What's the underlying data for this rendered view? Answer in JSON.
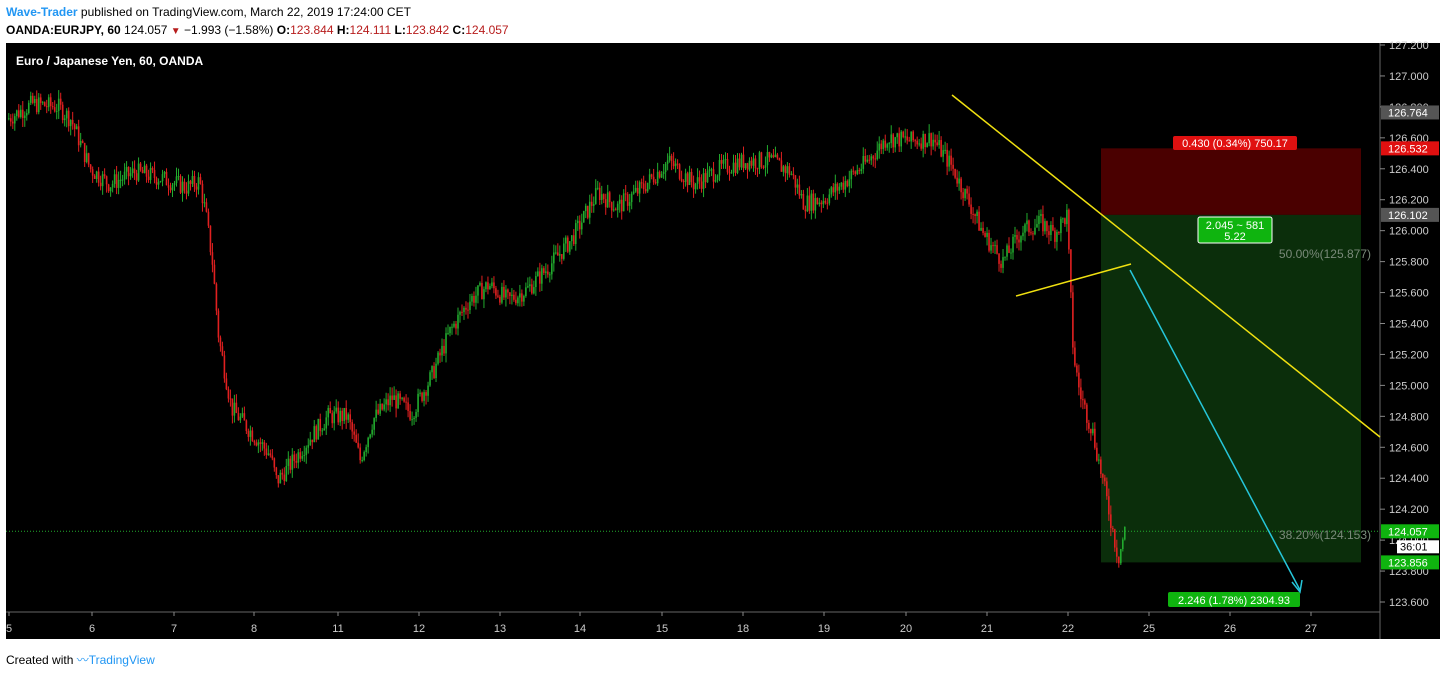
{
  "header": {
    "author": "Wave-Trader",
    "published_text": " published on TradingView.com, March 22, 2019 17:24:00 CET",
    "symbol": "OANDA:EURJPY, 60",
    "last": "124.057",
    "change": "−1.993 (−1.58%)",
    "o_label": "O:",
    "o_value": "123.844",
    "h_label": "H:",
    "h_value": "124.111",
    "l_label": "L:",
    "l_value": "123.842",
    "c_label": "C:",
    "c_value": "124.057"
  },
  "footer": {
    "created_with": "Created with",
    "brand": "TradingView"
  },
  "colors": {
    "background": "#000000",
    "up_candle": "#22ab2e",
    "down_candle": "#e02020",
    "trendline": "#f0e010",
    "arrow": "#26c6da",
    "stop_zone": "#4a0000",
    "target_zone": "#0b2e0b",
    "price_tag_green": "#0fb40f",
    "price_tag_red": "#e01010",
    "price_tag_gray": "#555555"
  },
  "chart_data": {
    "type": "candlestick",
    "title": "Euro / Japanese Yen, 60, OANDA",
    "xlabel": "",
    "ylabel": "",
    "ylim": [
      123.6,
      127.2
    ],
    "y_ticks": [
      "127.200",
      "127.000",
      "126.800",
      "126.600",
      "126.400",
      "126.200",
      "126.000",
      "125.800",
      "125.600",
      "125.400",
      "125.200",
      "125.000",
      "124.800",
      "124.600",
      "124.400",
      "124.200",
      "124.000",
      "123.800",
      "123.600"
    ],
    "x_ticks": [
      "5",
      "6",
      "7",
      "8",
      "11",
      "12",
      "13",
      "14",
      "15",
      "18",
      "19",
      "20",
      "21",
      "22",
      "25",
      "26",
      "27"
    ],
    "price_path": [
      [
        0,
        126.72
      ],
      [
        4,
        126.82
      ],
      [
        8,
        126.8
      ],
      [
        10,
        126.72
      ],
      [
        13,
        126.4
      ],
      [
        16,
        126.3
      ],
      [
        20,
        126.38
      ],
      [
        24,
        126.34
      ],
      [
        28,
        126.28
      ],
      [
        30,
        126.32
      ],
      [
        31,
        126.1
      ],
      [
        32,
        125.8
      ],
      [
        33,
        125.3
      ],
      [
        35,
        124.85
      ],
      [
        38,
        124.7
      ],
      [
        41,
        124.55
      ],
      [
        42,
        124.38
      ],
      [
        44,
        124.48
      ],
      [
        47,
        124.65
      ],
      [
        50,
        124.8
      ],
      [
        53,
        124.8
      ],
      [
        55,
        124.52
      ],
      [
        57,
        124.78
      ],
      [
        60,
        124.92
      ],
      [
        63,
        124.82
      ],
      [
        66,
        125.05
      ],
      [
        69,
        125.35
      ],
      [
        72,
        125.55
      ],
      [
        75,
        125.65
      ],
      [
        78,
        125.55
      ],
      [
        81,
        125.62
      ],
      [
        84,
        125.75
      ],
      [
        88,
        125.95
      ],
      [
        92,
        126.25
      ],
      [
        95,
        126.15
      ],
      [
        99,
        126.28
      ],
      [
        103,
        126.45
      ],
      [
        107,
        126.3
      ],
      [
        111,
        126.4
      ],
      [
        115,
        126.45
      ],
      [
        119,
        126.45
      ],
      [
        122,
        126.38
      ],
      [
        124,
        126.18
      ],
      [
        127,
        126.2
      ],
      [
        130,
        126.3
      ],
      [
        134,
        126.45
      ],
      [
        137,
        126.6
      ],
      [
        141,
        126.58
      ],
      [
        144,
        126.6
      ],
      [
        147,
        126.42
      ],
      [
        149,
        126.25
      ],
      [
        152,
        125.98
      ],
      [
        155,
        125.8
      ],
      [
        158,
        126.0
      ],
      [
        161,
        126.05
      ],
      [
        163,
        125.98
      ],
      [
        165,
        126.1
      ],
      [
        166,
        125.2
      ],
      [
        167,
        124.95
      ],
      [
        169,
        124.7
      ],
      [
        171,
        124.3
      ],
      [
        173,
        123.88
      ],
      [
        174,
        124.06
      ]
    ],
    "price_path_x_domain": [
      0,
      174
    ],
    "current_price": "124.057",
    "countdown": "36:01",
    "price_tags": [
      {
        "label": "126.764",
        "style": "gray",
        "value": 126.764
      },
      {
        "label": "126.532",
        "style": "red",
        "value": 126.532
      },
      {
        "label": "126.102",
        "style": "gray",
        "value": 126.102
      },
      {
        "label": "124.057",
        "style": "green",
        "value": 124.057
      },
      {
        "label": "123.856",
        "style": "green",
        "value": 123.856
      }
    ],
    "position": {
      "entry": 126.102,
      "stop": 126.532,
      "target": 123.856,
      "stop_label": "0.430 (0.34%) 750.17",
      "rr_line1": "2.045 ~ 581",
      "rr_line2": "5.22",
      "target_label": "2.246 (1.78%) 2304.93"
    },
    "fib_labels": [
      {
        "label": "50.00%(125.877)",
        "value": 125.877
      },
      {
        "label": "38.20%(124.153)",
        "value": 124.153
      }
    ]
  }
}
